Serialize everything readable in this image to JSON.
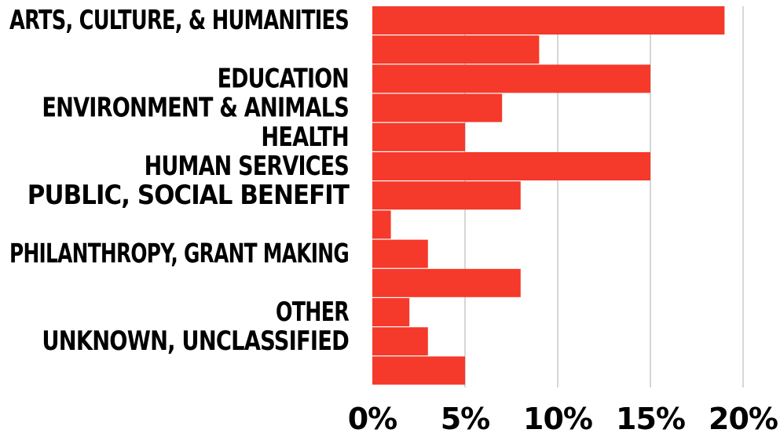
{
  "chart_data": {
    "type": "bar",
    "orientation": "horizontal",
    "categories": [
      "ARTS, CULTURE, & HUMANITIES",
      "",
      "EDUCATION",
      "ENVIRONMENT & ANIMALS",
      "HEALTH",
      "HUMAN SERVICES",
      "PUBLIC, SOCIAL BENEFIT",
      "",
      "PHILANTHROPY, GRANT MAKING",
      "",
      "OTHER",
      "UNKNOWN, UNCLASSIFIED",
      ""
    ],
    "values": [
      19,
      9,
      15,
      7,
      5,
      15,
      8,
      1,
      3,
      8,
      2,
      3,
      5
    ],
    "xlim": [
      0,
      20
    ],
    "x_ticks": [
      0,
      5,
      10,
      15,
      20
    ],
    "x_tick_labels": [
      "0%",
      "5%",
      "10%",
      "15%",
      "20%"
    ],
    "grid": "vertical",
    "bar_color": "#f5392a",
    "grid_color": "#c8c8c8"
  }
}
